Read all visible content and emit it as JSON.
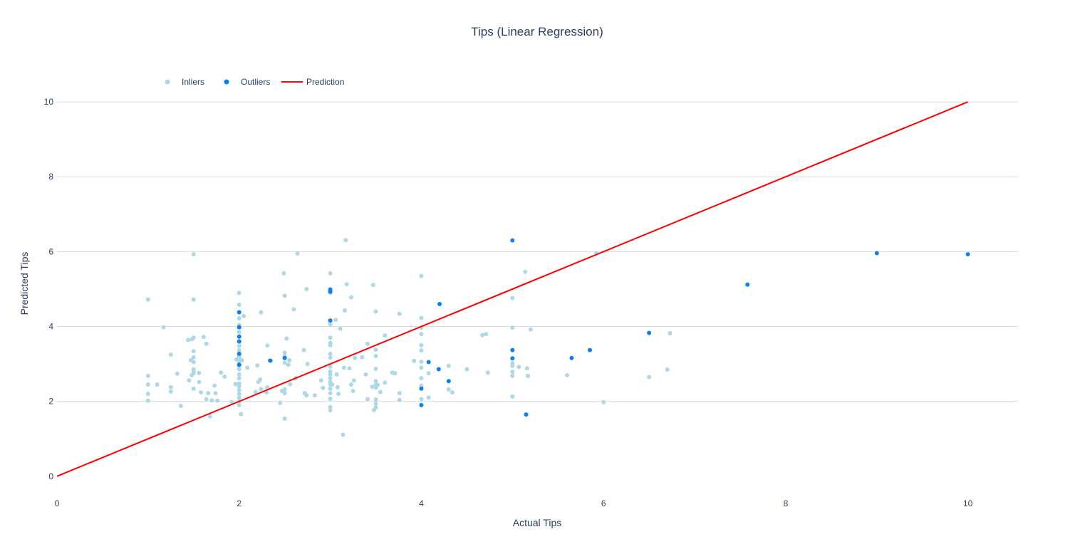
{
  "chart_data": {
    "type": "scatter",
    "title": "Tips (Linear Regression)",
    "xlabel": "Actual Tips",
    "ylabel": "Predicted Tips",
    "xlim": [
      0,
      10.55
    ],
    "ylim": [
      -0.65,
      11.2
    ],
    "x_ticks": [
      0,
      2,
      4,
      6,
      8,
      10
    ],
    "y_ticks": [
      0,
      2,
      4,
      6,
      8,
      10
    ],
    "grid": true,
    "legend_placement": "top-left",
    "colors": {
      "inliers": "#add8e6",
      "outliers": "#0c7ff2",
      "prediction": "#ff0000"
    },
    "series": [
      {
        "name": "Inliers",
        "type": "scatter",
        "points": [
          [
            1.0,
            4.72
          ],
          [
            1.0,
            2.68
          ],
          [
            1.0,
            2.45
          ],
          [
            1.0,
            2.2
          ],
          [
            1.0,
            2.02
          ],
          [
            1.1,
            2.45
          ],
          [
            1.17,
            3.98
          ],
          [
            1.25,
            3.25
          ],
          [
            1.25,
            2.38
          ],
          [
            1.25,
            2.26
          ],
          [
            1.32,
            2.74
          ],
          [
            1.36,
            1.88
          ],
          [
            1.44,
            3.64
          ],
          [
            1.45,
            2.56
          ],
          [
            1.47,
            3.1
          ],
          [
            1.48,
            3.66
          ],
          [
            1.5,
            5.93
          ],
          [
            1.5,
            4.72
          ],
          [
            1.5,
            3.7
          ],
          [
            1.5,
            3.34
          ],
          [
            1.5,
            3.18
          ],
          [
            1.5,
            3.05
          ],
          [
            1.5,
            2.86
          ],
          [
            1.5,
            2.8
          ],
          [
            1.5,
            2.75
          ],
          [
            1.48,
            2.7
          ],
          [
            1.5,
            2.34
          ],
          [
            1.56,
            2.76
          ],
          [
            1.56,
            2.52
          ],
          [
            1.58,
            2.24
          ],
          [
            1.61,
            3.72
          ],
          [
            1.64,
            3.54
          ],
          [
            1.64,
            2.06
          ],
          [
            1.66,
            2.22
          ],
          [
            1.68,
            1.6
          ],
          [
            1.7,
            2.03
          ],
          [
            1.73,
            2.42
          ],
          [
            1.74,
            2.22
          ],
          [
            1.76,
            2.02
          ],
          [
            1.8,
            2.77
          ],
          [
            1.84,
            2.66
          ],
          [
            1.92,
            1.98
          ],
          [
            1.96,
            2.46
          ],
          [
            1.97,
            3.12
          ],
          [
            2.0,
            4.9
          ],
          [
            2.0,
            4.58
          ],
          [
            2.0,
            4.22
          ],
          [
            2.0,
            4.04
          ],
          [
            2.0,
            3.85
          ],
          [
            2.0,
            3.6
          ],
          [
            2.0,
            3.48
          ],
          [
            2.0,
            3.36
          ],
          [
            2.0,
            3.24
          ],
          [
            2.0,
            3.18
          ],
          [
            2.0,
            3.08
          ],
          [
            2.0,
            2.95
          ],
          [
            2.0,
            2.86
          ],
          [
            2.0,
            2.72
          ],
          [
            2.0,
            2.62
          ],
          [
            2.0,
            2.48
          ],
          [
            2.0,
            2.4
          ],
          [
            2.0,
            2.3
          ],
          [
            2.0,
            2.2
          ],
          [
            2.0,
            2.1
          ],
          [
            2.0,
            2.0
          ],
          [
            2.0,
            1.9
          ],
          [
            2.02,
            1.66
          ],
          [
            2.03,
            3.1
          ],
          [
            2.05,
            4.28
          ],
          [
            2.09,
            2.9
          ],
          [
            2.18,
            2.25
          ],
          [
            2.2,
            2.96
          ],
          [
            2.21,
            2.52
          ],
          [
            2.23,
            2.58
          ],
          [
            2.24,
            4.38
          ],
          [
            2.24,
            2.33
          ],
          [
            2.31,
            3.49
          ],
          [
            2.3,
            2.24
          ],
          [
            2.31,
            2.38
          ],
          [
            2.35,
            3.08
          ],
          [
            2.45,
            1.96
          ],
          [
            2.47,
            2.28
          ],
          [
            2.49,
            5.42
          ],
          [
            2.5,
            4.82
          ],
          [
            2.5,
            3.3
          ],
          [
            2.5,
            3.2
          ],
          [
            2.5,
            3.03
          ],
          [
            2.5,
            2.32
          ],
          [
            2.5,
            2.22
          ],
          [
            2.5,
            1.54
          ],
          [
            2.52,
            3.68
          ],
          [
            2.54,
            2.98
          ],
          [
            2.55,
            3.1
          ],
          [
            2.56,
            2.46
          ],
          [
            2.6,
            4.46
          ],
          [
            2.62,
            2.62
          ],
          [
            2.64,
            5.95
          ],
          [
            2.71,
            3.37
          ],
          [
            2.72,
            2.22
          ],
          [
            2.74,
            5.0
          ],
          [
            2.74,
            2.16
          ],
          [
            2.75,
            3.0
          ],
          [
            2.83,
            2.16
          ],
          [
            2.9,
            2.56
          ],
          [
            2.92,
            2.36
          ],
          [
            3.0,
            5.42
          ],
          [
            3.0,
            4.9
          ],
          [
            3.0,
            4.06
          ],
          [
            3.0,
            3.7
          ],
          [
            3.0,
            3.56
          ],
          [
            3.0,
            3.5
          ],
          [
            3.0,
            3.27
          ],
          [
            3.0,
            3.17
          ],
          [
            3.0,
            2.93
          ],
          [
            3.0,
            2.8
          ],
          [
            3.0,
            2.72
          ],
          [
            3.0,
            2.62
          ],
          [
            3.0,
            2.52
          ],
          [
            3.0,
            2.45
          ],
          [
            3.0,
            2.34
          ],
          [
            3.0,
            2.22
          ],
          [
            3.0,
            2.07
          ],
          [
            3.0,
            1.85
          ],
          [
            3.0,
            1.76
          ],
          [
            3.02,
            2.45
          ],
          [
            3.06,
            4.18
          ],
          [
            3.07,
            2.72
          ],
          [
            3.08,
            2.38
          ],
          [
            3.09,
            2.2
          ],
          [
            3.11,
            3.94
          ],
          [
            3.14,
            1.11
          ],
          [
            3.15,
            2.9
          ],
          [
            3.16,
            4.43
          ],
          [
            3.17,
            6.31
          ],
          [
            3.18,
            5.13
          ],
          [
            3.21,
            2.88
          ],
          [
            3.23,
            4.78
          ],
          [
            3.23,
            2.45
          ],
          [
            3.25,
            2.28
          ],
          [
            3.26,
            2.56
          ],
          [
            3.27,
            3.16
          ],
          [
            3.35,
            3.18
          ],
          [
            3.39,
            2.72
          ],
          [
            3.41,
            2.06
          ],
          [
            3.41,
            3.54
          ],
          [
            3.47,
            5.11
          ],
          [
            3.46,
            2.39
          ],
          [
            3.48,
            1.77
          ],
          [
            3.5,
            4.4
          ],
          [
            3.5,
            3.38
          ],
          [
            3.5,
            3.21
          ],
          [
            3.5,
            2.87
          ],
          [
            3.5,
            2.54
          ],
          [
            3.5,
            2.44
          ],
          [
            3.5,
            2.37
          ],
          [
            3.5,
            2.05
          ],
          [
            3.5,
            1.94
          ],
          [
            3.5,
            1.84
          ],
          [
            3.52,
            2.44
          ],
          [
            3.55,
            2.25
          ],
          [
            3.6,
            3.76
          ],
          [
            3.6,
            2.5
          ],
          [
            3.68,
            2.77
          ],
          [
            3.71,
            2.75
          ],
          [
            3.76,
            4.34
          ],
          [
            3.76,
            2.22
          ],
          [
            3.76,
            2.04
          ],
          [
            3.92,
            3.08
          ],
          [
            4.0,
            5.35
          ],
          [
            4.0,
            4.23
          ],
          [
            4.0,
            3.97
          ],
          [
            4.0,
            3.8
          ],
          [
            4.0,
            3.5
          ],
          [
            4.0,
            3.36
          ],
          [
            4.0,
            3.06
          ],
          [
            4.0,
            2.9
          ],
          [
            4.0,
            2.62
          ],
          [
            4.0,
            2.42
          ],
          [
            4.0,
            2.06
          ],
          [
            4.08,
            2.1
          ],
          [
            4.08,
            2.75
          ],
          [
            4.3,
            2.95
          ],
          [
            4.3,
            2.32
          ],
          [
            4.34,
            2.24
          ],
          [
            4.5,
            2.86
          ],
          [
            4.67,
            3.77
          ],
          [
            4.71,
            3.8
          ],
          [
            4.73,
            2.77
          ],
          [
            5.0,
            4.76
          ],
          [
            5.0,
            3.97
          ],
          [
            5.0,
            3.02
          ],
          [
            5.0,
            2.95
          ],
          [
            5.0,
            2.79
          ],
          [
            5.0,
            2.68
          ],
          [
            5.0,
            2.13
          ],
          [
            5.07,
            2.92
          ],
          [
            5.14,
            5.46
          ],
          [
            5.16,
            2.88
          ],
          [
            5.17,
            2.68
          ],
          [
            5.2,
            3.92
          ],
          [
            5.6,
            2.7
          ],
          [
            5.92,
            5.95
          ],
          [
            6.0,
            1.98
          ],
          [
            6.5,
            2.65
          ],
          [
            6.7,
            2.85
          ],
          [
            6.73,
            3.82
          ]
        ]
      },
      {
        "name": "Outliers",
        "type": "scatter",
        "points": [
          [
            2.0,
            4.38
          ],
          [
            2.0,
            3.98
          ],
          [
            2.0,
            3.73
          ],
          [
            2.0,
            3.6
          ],
          [
            2.0,
            3.27
          ],
          [
            2.0,
            2.98
          ],
          [
            2.34,
            3.09
          ],
          [
            2.5,
            3.16
          ],
          [
            3.0,
            4.99
          ],
          [
            3.0,
            4.93
          ],
          [
            3.0,
            4.16
          ],
          [
            4.0,
            2.34
          ],
          [
            4.0,
            1.9
          ],
          [
            4.08,
            3.05
          ],
          [
            4.19,
            2.86
          ],
          [
            4.2,
            4.6
          ],
          [
            4.3,
            2.54
          ],
          [
            5.0,
            6.3
          ],
          [
            5.0,
            3.37
          ],
          [
            5.0,
            3.15
          ],
          [
            5.15,
            1.65
          ],
          [
            5.65,
            3.16
          ],
          [
            5.85,
            3.37
          ],
          [
            6.5,
            3.83
          ],
          [
            7.58,
            5.12
          ],
          [
            9.0,
            5.96
          ],
          [
            10.0,
            5.93
          ]
        ]
      },
      {
        "name": "Prediction",
        "type": "line",
        "points": [
          [
            0,
            0
          ],
          [
            10,
            10
          ]
        ]
      }
    ]
  }
}
